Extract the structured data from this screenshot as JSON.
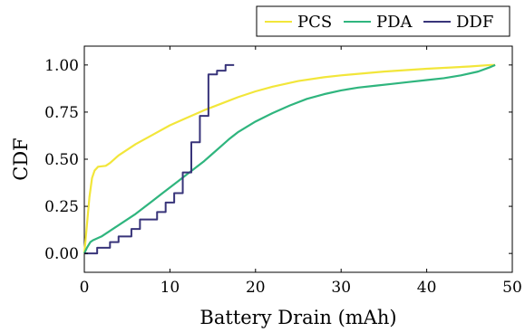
{
  "chart_data": {
    "type": "line",
    "title": "",
    "xlabel": "Battery Drain (mAh)",
    "ylabel": "CDF",
    "xlim": [
      0,
      50
    ],
    "ylim": [
      -0.1,
      1.1
    ],
    "x_ticks": [
      0,
      10,
      20,
      30,
      40,
      50
    ],
    "x_tick_labels": [
      "0",
      "10",
      "20",
      "30",
      "40",
      "50"
    ],
    "y_ticks": [
      0,
      0.25,
      0.5,
      0.75,
      1.0
    ],
    "y_tick_labels": [
      "0.00",
      "0.25",
      "0.50",
      "0.75",
      "1.00"
    ],
    "grid": false,
    "legend_placement": "top-right, outside plot",
    "series": [
      {
        "name": "PCS",
        "color": "#f2e63a",
        "step": false,
        "x": [
          0,
          0.3,
          0.6,
          0.9,
          1.2,
          1.6,
          2.5,
          3.0,
          4.0,
          6.0,
          8.0,
          10.0,
          12.0,
          14.0,
          16.0,
          18.0,
          20.0,
          22.0,
          25.0,
          28.0,
          30.0,
          35.0,
          40.0,
          45.0,
          47.5,
          48.0
        ],
        "y": [
          0,
          0.15,
          0.3,
          0.4,
          0.44,
          0.46,
          0.465,
          0.48,
          0.52,
          0.58,
          0.63,
          0.68,
          0.72,
          0.76,
          0.795,
          0.83,
          0.86,
          0.885,
          0.915,
          0.935,
          0.945,
          0.965,
          0.98,
          0.992,
          1.0,
          1.0
        ]
      },
      {
        "name": "PDA",
        "color": "#2fb57e",
        "step": false,
        "x": [
          0,
          0.3,
          0.7,
          1.0,
          1.5,
          2.0,
          3.0,
          4.0,
          5.0,
          6.0,
          7.0,
          8.0,
          9.0,
          10.0,
          11.0,
          12.0,
          13.0,
          14.0,
          15.0,
          16.0,
          17.0,
          18.0,
          20.0,
          22.0,
          24.0,
          26.0,
          28.0,
          30.0,
          32.0,
          34.0,
          36.0,
          38.0,
          40.0,
          42.0,
          44.0,
          46.0,
          47.5,
          48.0
        ],
        "y": [
          0,
          0.03,
          0.06,
          0.07,
          0.08,
          0.09,
          0.12,
          0.15,
          0.18,
          0.21,
          0.245,
          0.28,
          0.315,
          0.35,
          0.385,
          0.42,
          0.455,
          0.49,
          0.53,
          0.57,
          0.61,
          0.645,
          0.7,
          0.745,
          0.785,
          0.82,
          0.845,
          0.865,
          0.88,
          0.89,
          0.9,
          0.91,
          0.92,
          0.93,
          0.945,
          0.965,
          0.99,
          1.0
        ]
      },
      {
        "name": "DDF",
        "color": "#38347a",
        "step": true,
        "x": [
          0,
          1.5,
          3.0,
          4.0,
          5.5,
          6.5,
          8.5,
          9.5,
          10.5,
          11.5,
          12.5,
          13.5,
          14.5,
          15.5,
          16.5,
          17.5
        ],
        "y": [
          0,
          0.03,
          0.06,
          0.09,
          0.13,
          0.18,
          0.22,
          0.27,
          0.32,
          0.43,
          0.59,
          0.73,
          0.95,
          0.97,
          1.0,
          1.0
        ]
      }
    ]
  }
}
